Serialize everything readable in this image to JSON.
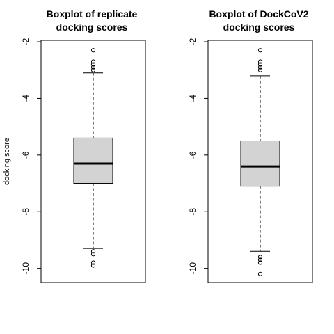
{
  "ylabel": "docking score",
  "chart_data": [
    {
      "type": "boxplot",
      "title_lines": [
        "Boxplot of replicate",
        "docking scores"
      ],
      "ylabel": "docking score",
      "ylim": [
        -10.5,
        -1.95
      ],
      "yticks": [
        -2,
        -4,
        -6,
        -8,
        -10
      ],
      "box": {
        "q1": -7.0,
        "median": -6.3,
        "q3": -5.4,
        "whisker_low": -9.3,
        "whisker_high": -3.1
      },
      "outliers_high": [
        -2.3,
        -2.7,
        -2.8,
        -2.9,
        -3.0
      ],
      "outliers_low": [
        -9.4,
        -9.5,
        -9.8,
        -9.9
      ],
      "box_fill": "#d3d3d3"
    },
    {
      "type": "boxplot",
      "title_lines": [
        "Boxplot of DockCoV2",
        "docking scores"
      ],
      "ylabel": "",
      "ylim": [
        -10.5,
        -1.95
      ],
      "yticks": [
        -2,
        -4,
        -6,
        -8,
        -10
      ],
      "box": {
        "q1": -7.1,
        "median": -6.4,
        "q3": -5.5,
        "whisker_low": -9.4,
        "whisker_high": -3.2
      },
      "outliers_high": [
        -2.3,
        -2.7,
        -2.8,
        -2.9,
        -3.0
      ],
      "outliers_low": [
        -9.6,
        -9.7,
        -9.8,
        -10.2
      ],
      "box_fill": "#d3d3d3"
    }
  ]
}
